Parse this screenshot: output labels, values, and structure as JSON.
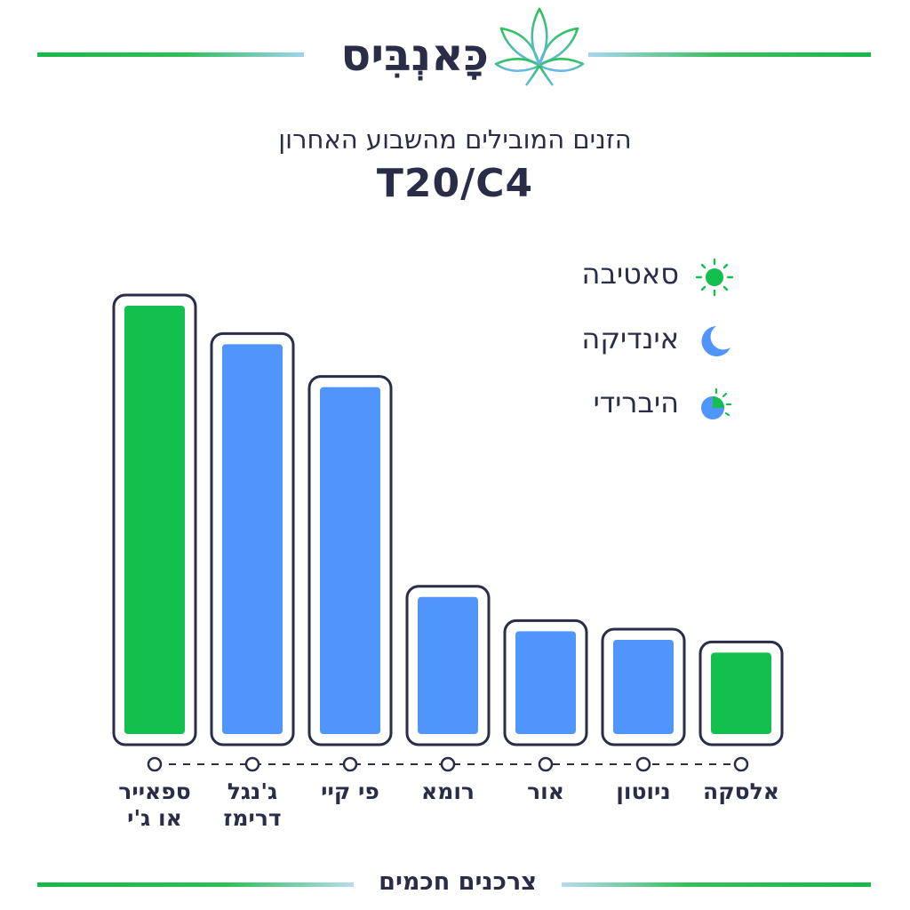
{
  "brand": {
    "name": "כָּאנְבִּיס",
    "logo_icon": "cannabis-leaf-icon"
  },
  "header": {
    "subtitle": "הזנים המובילים מהשבוע האחרון",
    "title": "T20/C4"
  },
  "legend": [
    {
      "label": "סאטיבה",
      "icon": "sun-icon",
      "color": "#13bf4d"
    },
    {
      "label": "אינדיקה",
      "icon": "moon-icon",
      "color": "#4f95fb"
    },
    {
      "label": "היברידי",
      "icon": "hybrid-sun-moon-icon",
      "color": "#4f95fb"
    }
  ],
  "chart_data": {
    "type": "bar",
    "title": "T20/C4",
    "categories": [
      "ספאייר\nאו ג'י",
      "ג'נגל\nדרימז",
      "פי קיי",
      "רומא",
      "אור",
      "ניוטון",
      "אלסקה"
    ],
    "series": [
      {
        "name": "",
        "values": [
          100,
          91,
          81,
          32,
          24,
          22,
          19
        ]
      }
    ],
    "bar_types": [
      "סאטיבה",
      "אינדיקה",
      "אינדיקה",
      "אינדיקה",
      "אינדיקה",
      "אינדיקה",
      "סאטיבה"
    ],
    "bar_colors": [
      "#13bf4d",
      "#4f95fb",
      "#4f95fb",
      "#4f95fb",
      "#4f95fb",
      "#4f95fb",
      "#13bf4d"
    ],
    "ylim": [
      0,
      100
    ],
    "grid": false,
    "legend_position": "top-right",
    "xlabel": "",
    "ylabel": ""
  },
  "footer": {
    "text": "צרכנים חכמים"
  },
  "colors": {
    "text": "#2a2d48",
    "sativa": "#13bf4d",
    "indica": "#4f95fb",
    "frame": "#2a2d48"
  }
}
